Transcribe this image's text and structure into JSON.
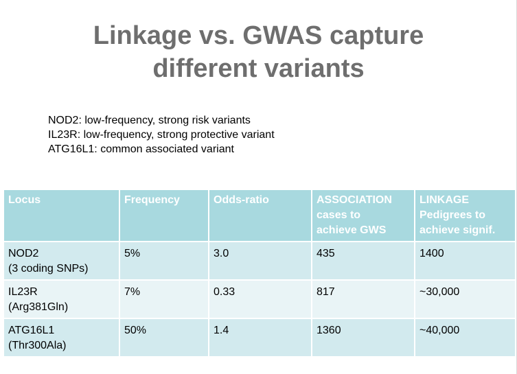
{
  "slide": {
    "title_lines": [
      "Linkage vs. GWAS capture",
      "different variants"
    ],
    "bullets": [
      "NOD2:  low-frequency, strong risk variants",
      "IL23R: low-frequency, strong protective variant",
      "ATG16L1: common associated variant"
    ]
  },
  "table": {
    "headers": [
      [
        "Locus"
      ],
      [
        "Frequency"
      ],
      [
        "Odds-ratio"
      ],
      [
        "ASSOCIATION",
        "cases to",
        "achieve GWS"
      ],
      [
        "LINKAGE",
        "Pedigrees to",
        "achieve signif."
      ]
    ],
    "rows": [
      {
        "locus": [
          "NOD2",
          "(3 coding SNPs)"
        ],
        "frequency": "5%",
        "odds_ratio": "3.0",
        "association": "435",
        "linkage": "1400"
      },
      {
        "locus": [
          "IL23R",
          "(Arg381Gln)"
        ],
        "frequency": "7%",
        "odds_ratio": "0.33",
        "association": "817",
        "linkage": "~30,000"
      },
      {
        "locus": [
          "ATG16L1",
          "(Thr300Ala)"
        ],
        "frequency": "50%",
        "odds_ratio": "1.4",
        "association": "1360",
        "linkage": "~40,000"
      }
    ],
    "colors": {
      "header_bg": "#a8d9df",
      "row_odd_bg": "#d2eaee",
      "row_even_bg": "#e9f4f6",
      "title_text": "#6e6e6e"
    }
  }
}
